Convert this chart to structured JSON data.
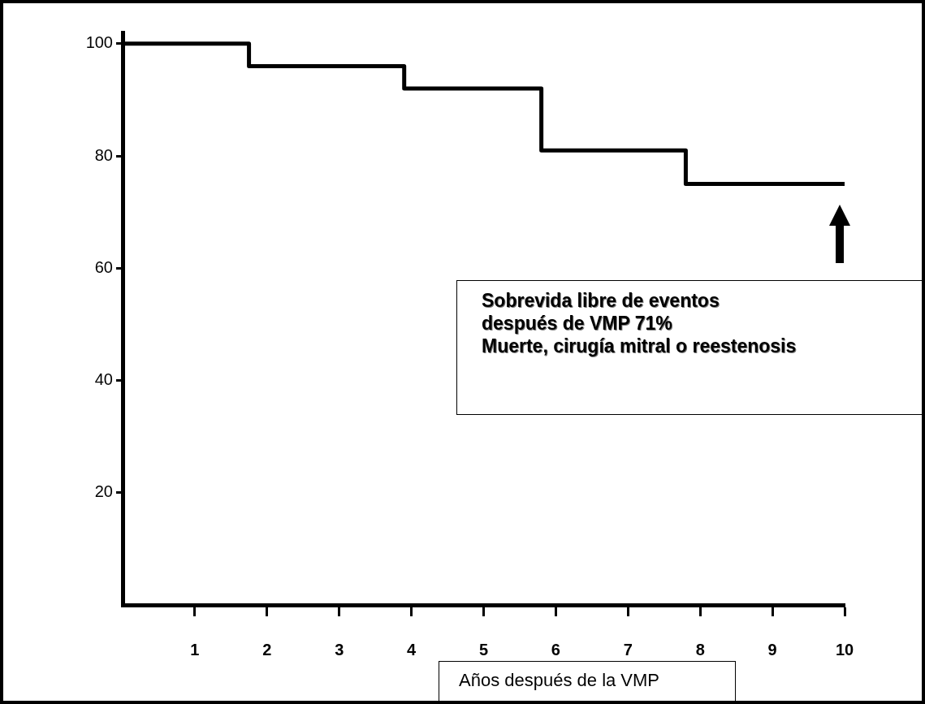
{
  "chart_data": {
    "type": "step",
    "x": [
      0,
      1.75,
      3.9,
      5.8,
      7.8,
      10
    ],
    "values": [
      100,
      96,
      92,
      81,
      75,
      75
    ],
    "color": "#000000",
    "xlim": [
      0,
      10
    ],
    "xticks": [
      1,
      2,
      3,
      4,
      5,
      6,
      7,
      8,
      9,
      10
    ],
    "ylim": [
      0,
      102
    ],
    "yticks": [
      20,
      40,
      60,
      80,
      100
    ],
    "xlabel": "Años después de la VMP",
    "annotations": [
      "Sobrevida libre de eventos",
      "después de VMP 71%",
      "Muerte, cirugía mitral o reestenosis"
    ],
    "grid": false,
    "legend": false,
    "marker": "none",
    "line_style": "solid"
  }
}
